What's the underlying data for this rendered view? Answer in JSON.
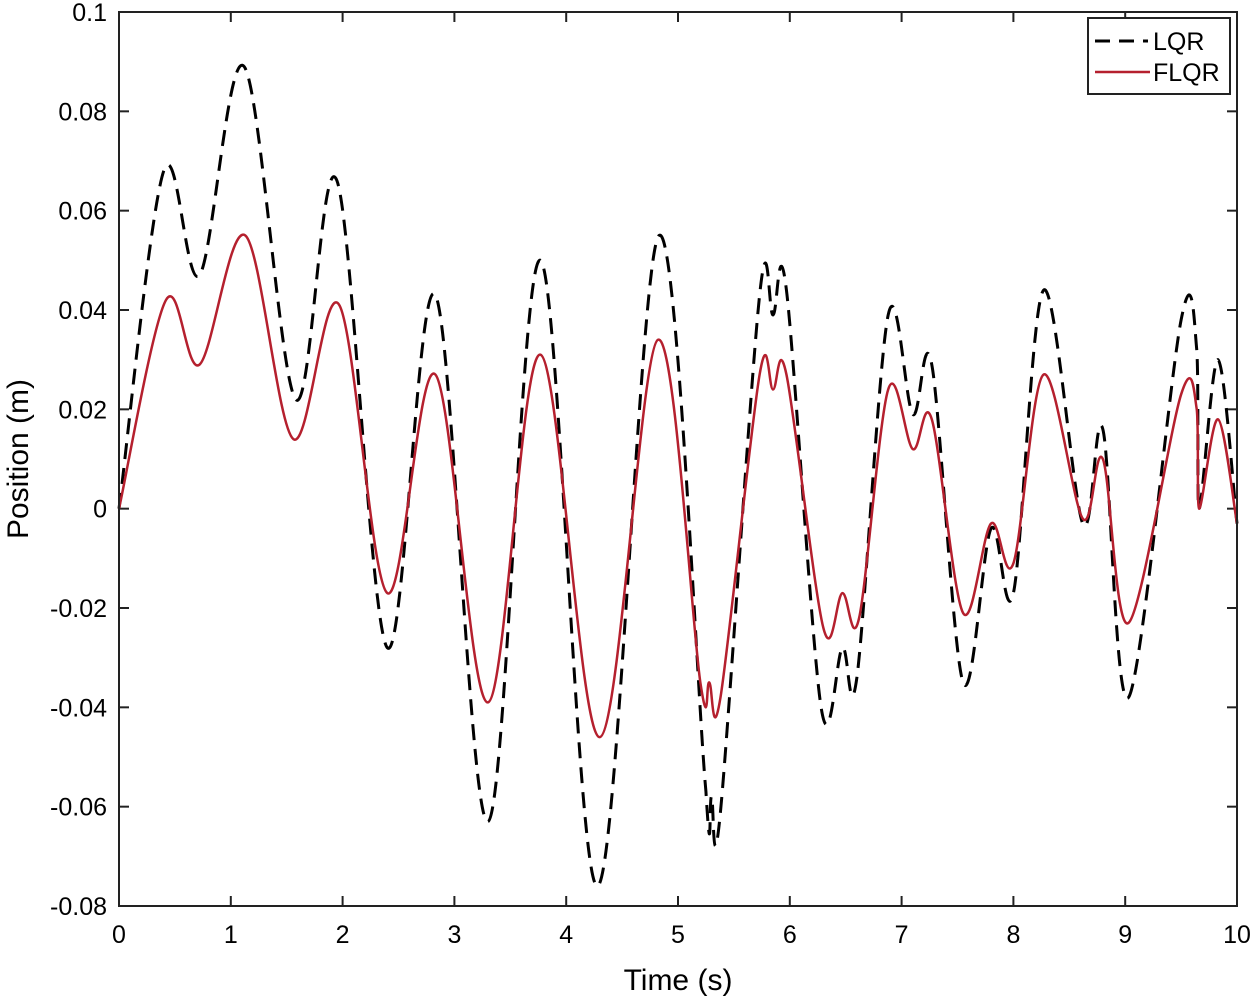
{
  "chart_data": {
    "type": "line",
    "xlabel": "Time (s)",
    "ylabel": "Position (m)",
    "xlim": [
      0,
      10
    ],
    "ylim": [
      -0.08,
      0.1
    ],
    "xticks": [
      "0",
      "1",
      "2",
      "3",
      "4",
      "5",
      "6",
      "7",
      "8",
      "9",
      "10"
    ],
    "yticks": [
      "-0.08",
      "-0.06",
      "-0.04",
      "-0.02",
      "0",
      "0.02",
      "0.04",
      "0.06",
      "0.08",
      "0.1"
    ],
    "grid": false,
    "legend_position": "top-right",
    "series": [
      {
        "name": "LQR",
        "color": "#000000",
        "style": "dashed",
        "x": [
          0,
          0.4,
          0.72,
          1.12,
          1.58,
          1.95,
          2.4,
          2.83,
          3.3,
          3.77,
          4.28,
          4.83,
          5.25,
          5.3,
          5.38,
          5.73,
          5.85,
          5.97,
          6.28,
          6.47,
          6.6,
          6.88,
          7.1,
          7.27,
          7.55,
          7.8,
          8.0,
          8.27,
          8.62,
          8.8,
          9.03,
          9.5,
          9.64,
          9.66,
          9.83,
          10
        ],
        "y": [
          0,
          0.068,
          0.047,
          0.089,
          0.022,
          0.066,
          -0.028,
          0.043,
          -0.063,
          0.05,
          -0.076,
          0.055,
          -0.057,
          -0.058,
          -0.061,
          0.043,
          0.039,
          0.044,
          -0.04,
          -0.028,
          -0.034,
          0.039,
          0.019,
          0.029,
          -0.035,
          -0.004,
          -0.017,
          0.044,
          -0.003,
          0.016,
          -0.038,
          0.038,
          0.032,
          0,
          0.03,
          -0.003
        ]
      },
      {
        "name": "FLQR",
        "color": "#b5202e",
        "style": "solid",
        "x": [
          0,
          0.42,
          0.72,
          1.13,
          1.56,
          1.97,
          2.4,
          2.83,
          3.3,
          3.77,
          4.3,
          4.82,
          5.2,
          5.28,
          5.38,
          5.73,
          5.85,
          5.97,
          6.3,
          6.47,
          6.62,
          6.88,
          7.1,
          7.27,
          7.55,
          7.8,
          8.0,
          8.27,
          8.62,
          8.8,
          9.03,
          9.5,
          9.64,
          9.66,
          9.83,
          10
        ],
        "y": [
          0,
          0.042,
          0.029,
          0.055,
          0.014,
          0.041,
          -0.017,
          0.027,
          -0.039,
          0.031,
          -0.046,
          0.034,
          -0.035,
          -0.035,
          -0.038,
          0.027,
          0.024,
          0.027,
          -0.024,
          -0.017,
          -0.022,
          0.024,
          0.012,
          0.018,
          -0.021,
          -0.003,
          -0.011,
          0.027,
          -0.002,
          0.01,
          -0.023,
          0.023,
          0.02,
          0,
          0.018,
          -0.003
        ]
      }
    ]
  }
}
